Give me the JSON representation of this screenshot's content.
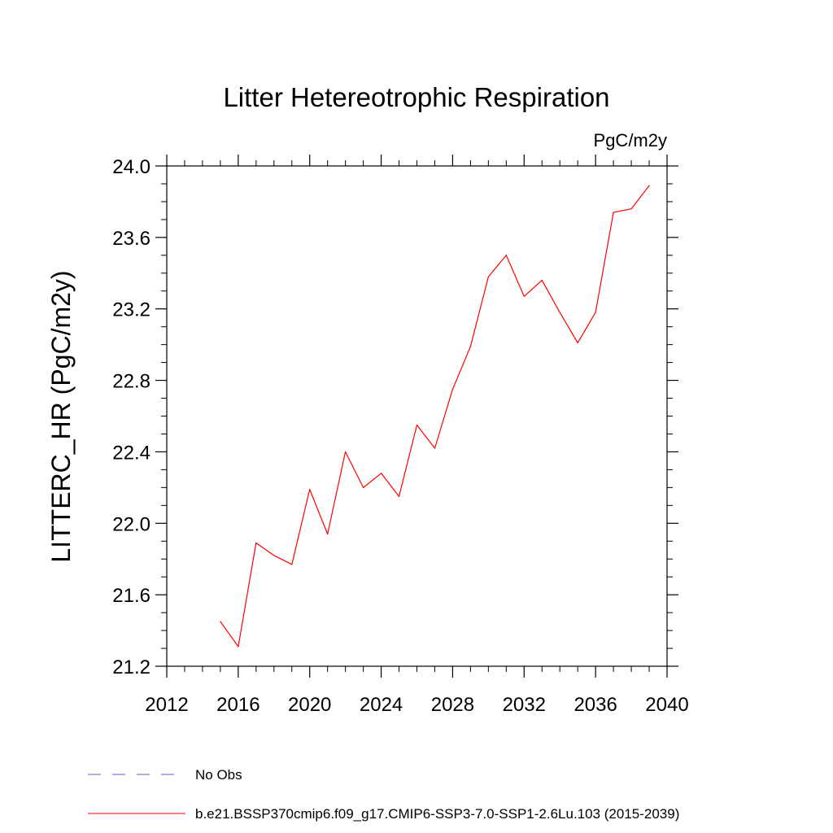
{
  "chart_data": {
    "type": "line",
    "title": "Litter Hetereotrophic Respiration",
    "units_label": "PgC/m2y",
    "ylabel": "LITTERC_HR  (PgC/m2y)",
    "xlabel": "",
    "xlim": [
      2012,
      2040
    ],
    "ylim": [
      21.2,
      24.0
    ],
    "x_ticks": [
      2012,
      2016,
      2020,
      2024,
      2028,
      2032,
      2036,
      2040
    ],
    "x_tick_labels": [
      "2012",
      "2016",
      "2020",
      "2024",
      "2028",
      "2032",
      "2036",
      "2040"
    ],
    "y_ticks": [
      21.2,
      21.6,
      22.0,
      22.4,
      22.8,
      23.2,
      23.6,
      24.0
    ],
    "y_tick_labels": [
      "21.2",
      "21.6",
      "22.0",
      "22.4",
      "22.8",
      "23.2",
      "23.6",
      "24.0"
    ],
    "grid": false,
    "series": [
      {
        "name": "b.e21.BSSP370cmip6.f09_g17.CMIP6-SSP3-7.0-SSP1-2.6Lu.103 (2015-2039)",
        "color": "#ff0000",
        "x": [
          2015,
          2016,
          2017,
          2018,
          2019,
          2020,
          2021,
          2022,
          2023,
          2024,
          2025,
          2026,
          2027,
          2028,
          2029,
          2030,
          2031,
          2032,
          2033,
          2034,
          2035,
          2036,
          2037,
          2038,
          2039
        ],
        "values": [
          21.45,
          21.31,
          21.89,
          21.82,
          21.77,
          22.19,
          21.94,
          22.4,
          22.2,
          22.28,
          22.15,
          22.55,
          22.42,
          22.75,
          22.99,
          23.38,
          23.5,
          23.27,
          23.36,
          23.18,
          23.01,
          23.18,
          23.74,
          23.76,
          23.89
        ]
      }
    ],
    "legend": {
      "placement": "bottom-left",
      "entries": [
        {
          "label": "No Obs",
          "color": "#6a5acd",
          "style": "dashed"
        },
        {
          "label": "b.e21.BSSP370cmip6.f09_g17.CMIP6-SSP3-7.0-SSP1-2.6Lu.103 (2015-2039)",
          "color": "#ff0000",
          "style": "solid"
        }
      ]
    }
  }
}
